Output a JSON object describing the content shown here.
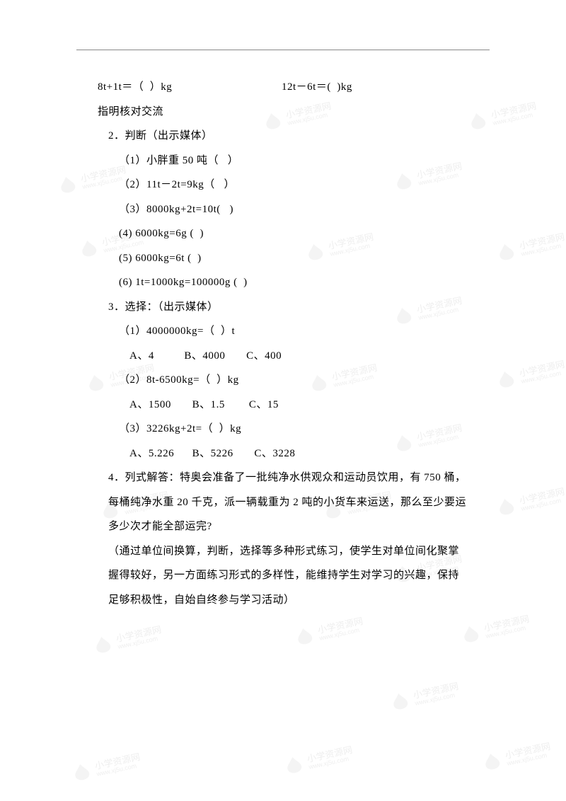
{
  "lines": {
    "l1a": "8t+1t＝（  ）kg",
    "l1b": "12t－6t＝(  )kg",
    "l2": "指明核对交流",
    "l3": "2．判断（出示媒体）",
    "l4": "（1）小胖重 50 吨（   ）",
    "l5": "（2）11t－2t=9kg（   ）",
    "l6": "（3）8000kg+2t=10t(   )",
    "l7": "(4) 6000kg=6g (  )",
    "l8": "(5) 6000kg=6t (  )",
    "l9": "(6) 1t=1000kg=100000g (  )",
    "l10": "3．选择：（出示媒体）",
    "l11": "（1）4000000kg=（  ）t",
    "l12": "A、4          B、4000       C、400",
    "l13": "（2）8t-6500kg=（  ）kg",
    "l14": "A、1500       B、1.5        C、15",
    "l15": "（3）3226kg+2t=（  ）kg",
    "l16": "A、5.226      B、5226       C、3228",
    "l17": "4．列式解答：特奥会准备了一批纯净水供观众和运动员饮用，有 750 桶，",
    "l18": "每桶纯净水重 20 千克，派一辆载重为 2 吨的小货车来运送，那么至少要运",
    "l19": "多少次才能全部运完?",
    "l20": "（通过单位间换算，判断，选择等多种形式练习，使学生对单位间化聚掌",
    "l21": "握得较好，另一方面练习形式的多样性，能维持学生对学习的兴趣，保持",
    "l22": "足够积极性，自始自终参与学习活动）"
  },
  "watermark": {
    "cn": "小学资源网",
    "url": "www.xj5u.com"
  }
}
